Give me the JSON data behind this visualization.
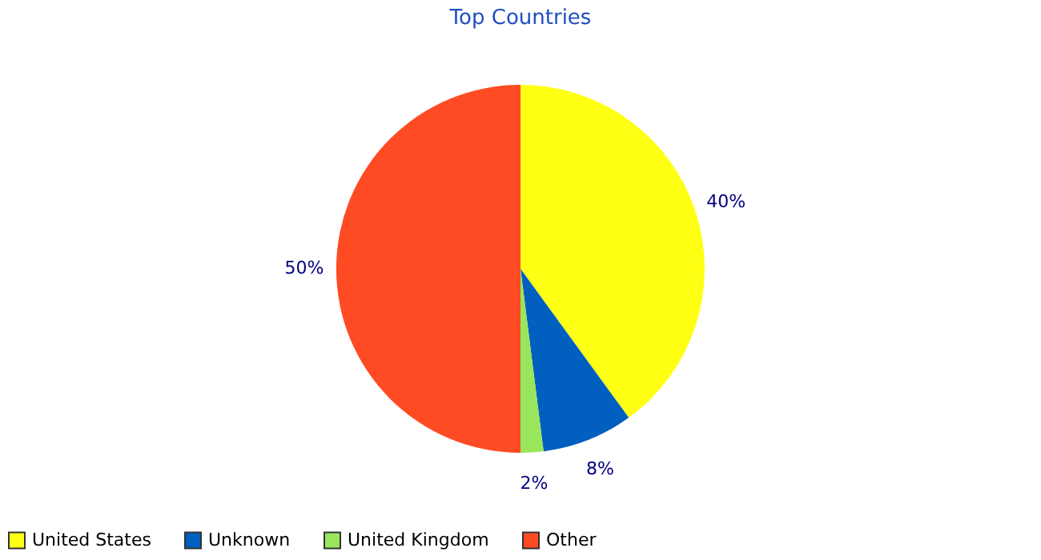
{
  "chart_data": {
    "type": "pie",
    "title": "Top Countries",
    "categories": [
      "United States",
      "Unknown",
      "United Kingdom",
      "Other"
    ],
    "values": [
      40,
      8,
      2,
      50
    ],
    "colors": [
      "#ffff14",
      "#005fbf",
      "#99e65c",
      "#ff4b23"
    ],
    "value_labels": [
      "40%",
      "8%",
      "2%",
      "50%"
    ],
    "legend": "bottom"
  }
}
